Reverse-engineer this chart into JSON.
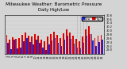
{
  "title": "Milwaukee Weather: Barometric Pressure",
  "subtitle": "Daily High/Low",
  "legend_high": "High",
  "legend_low": "Low",
  "color_high": "#dd0000",
  "color_low": "#2222cc",
  "color_bg": "#d4d4d4",
  "color_plot_bg": "#d4d4d4",
  "ylim": [
    28.8,
    30.75
  ],
  "ytick_labels": [
    "29.0",
    "29.2",
    "29.4",
    "29.6",
    "29.8",
    "30.0",
    "30.2",
    "30.4",
    "30.6",
    "30.8"
  ],
  "ytick_vals": [
    29.0,
    29.2,
    29.4,
    29.6,
    29.8,
    30.0,
    30.2,
    30.4,
    30.6,
    30.8
  ],
  "bar_width": 0.42,
  "days": [
    "1",
    "2",
    "3",
    "4",
    "5",
    "6",
    "7",
    "8",
    "9",
    "10",
    "11",
    "12",
    "13",
    "14",
    "15",
    "16",
    "17",
    "18",
    "19",
    "20",
    "21",
    "22",
    "23",
    "24",
    "25",
    "26",
    "27",
    "28",
    "29",
    "30",
    "31"
  ],
  "high": [
    29.78,
    29.52,
    29.65,
    29.58,
    29.62,
    29.8,
    29.9,
    29.75,
    29.68,
    29.82,
    29.74,
    29.52,
    29.46,
    29.7,
    29.84,
    29.96,
    29.78,
    29.62,
    29.85,
    30.05,
    29.92,
    29.72,
    29.58,
    29.45,
    29.7,
    30.08,
    30.22,
    29.82,
    29.62,
    29.74,
    29.8
  ],
  "low": [
    29.38,
    29.06,
    29.52,
    29.08,
    29.14,
    29.46,
    29.62,
    29.4,
    29.28,
    29.52,
    29.38,
    29.12,
    29.02,
    29.28,
    29.48,
    29.6,
    29.38,
    29.22,
    29.52,
    29.72,
    29.58,
    29.34,
    29.14,
    29.08,
    29.38,
    29.72,
    29.82,
    29.48,
    29.22,
    29.42,
    29.54
  ],
  "dotted_line_indices": [
    22,
    23,
    24,
    25
  ],
  "title_fontsize": 4.2,
  "tick_fontsize": 2.5,
  "legend_fontsize": 2.8
}
